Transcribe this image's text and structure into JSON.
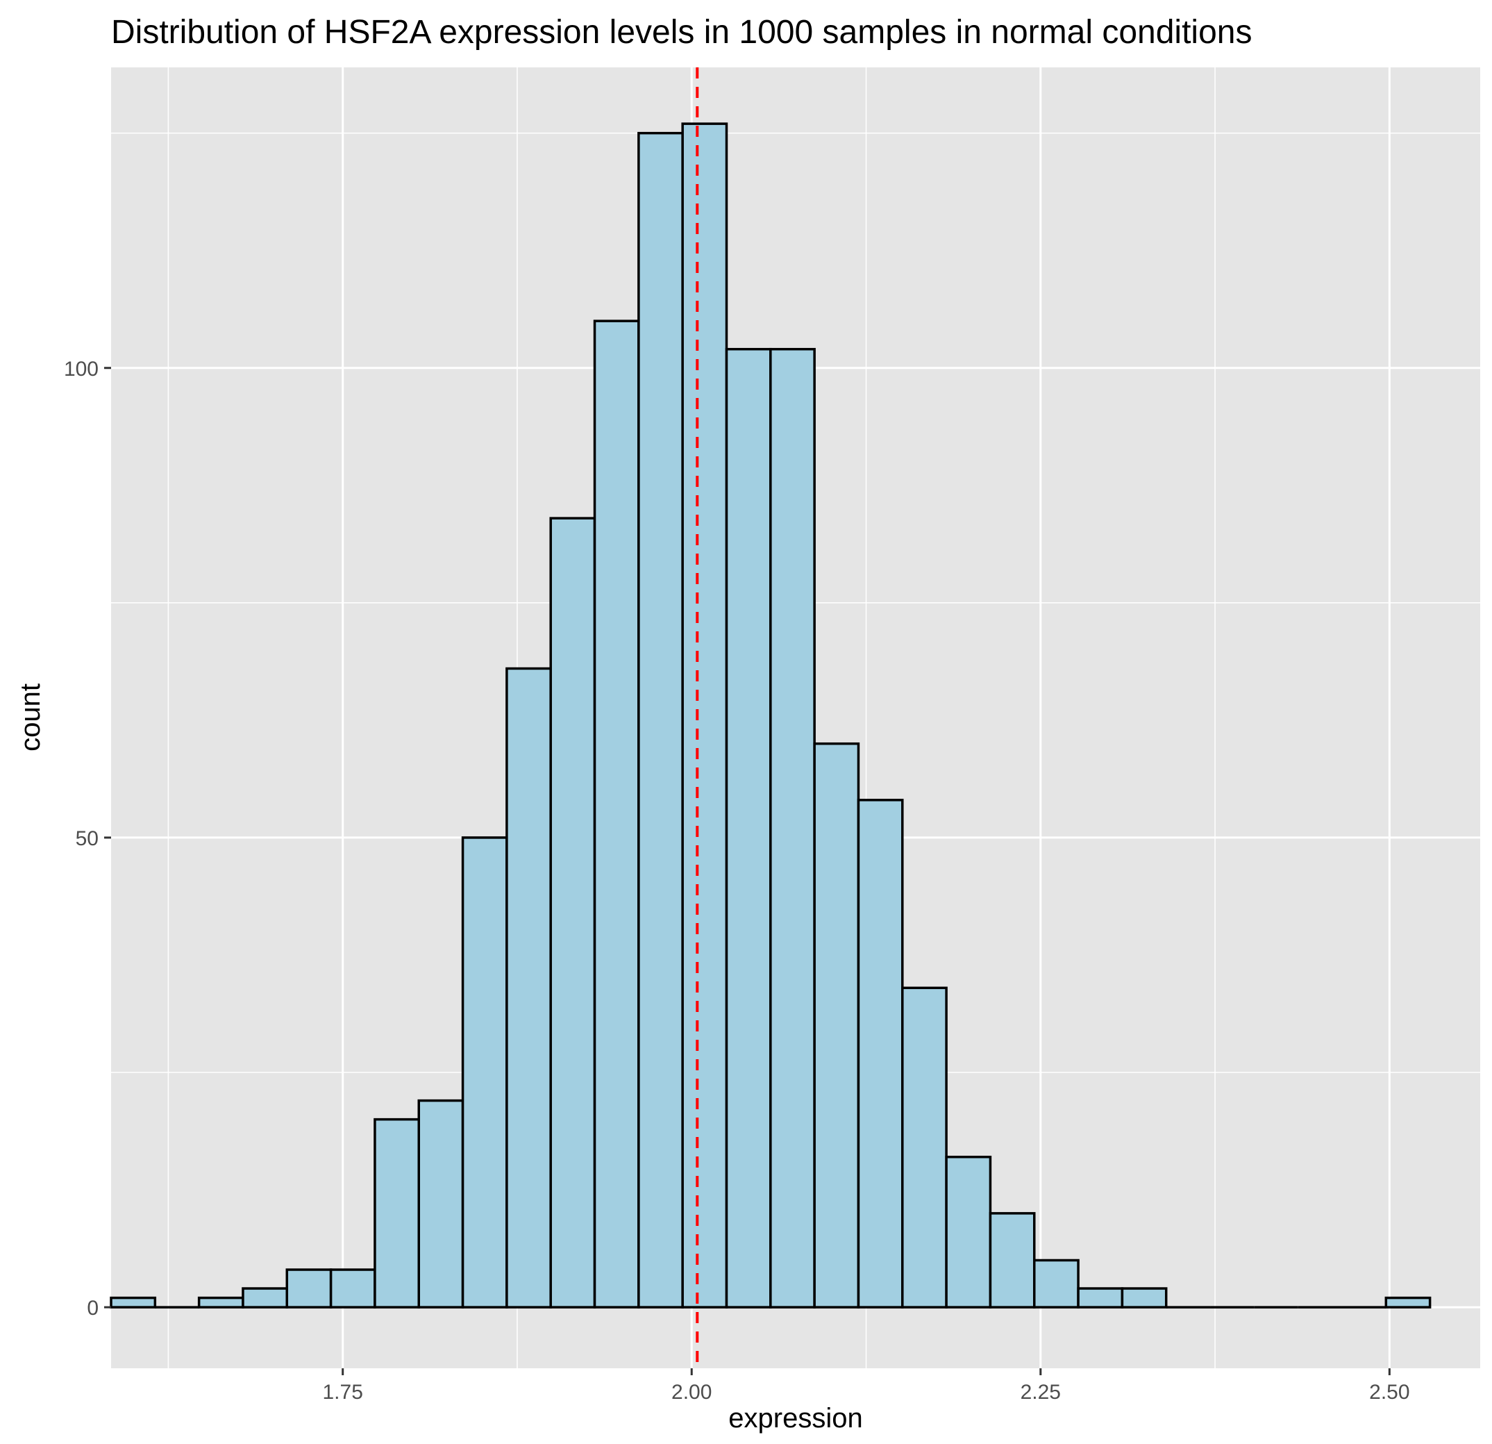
{
  "chart_data": {
    "type": "histogram",
    "title": "Distribution of HSF2A expression levels in 1000 samples in normal conditions",
    "xlabel": "expression",
    "ylabel": "count",
    "xlim": [
      1.584,
      2.565
    ],
    "ylim": [
      -6.5,
      132
    ],
    "x_ticks": [
      1.75,
      2.0,
      2.25,
      2.5
    ],
    "x_tick_labels": [
      "1.75",
      "2.00",
      "2.25",
      "2.50"
    ],
    "y_ticks": [
      0,
      50,
      100
    ],
    "y_tick_labels": [
      "0",
      "50",
      "100"
    ],
    "bins": {
      "start": 1.584,
      "width": 0.0315,
      "counts": [
        1,
        0,
        1,
        2,
        4,
        4,
        20,
        22,
        50,
        68,
        84,
        105,
        125,
        126,
        102,
        102,
        60,
        54,
        34,
        16,
        10,
        5,
        2,
        2,
        0,
        0,
        0,
        0,
        0,
        1
      ]
    },
    "reference_line": {
      "x": 2.004,
      "style": "dashed",
      "color": "#ff0000"
    },
    "bar_fill": "#a2cfe1",
    "bar_outline": "#000000",
    "panel_background": "#e5e5e5",
    "grid": true,
    "legend": "none"
  }
}
